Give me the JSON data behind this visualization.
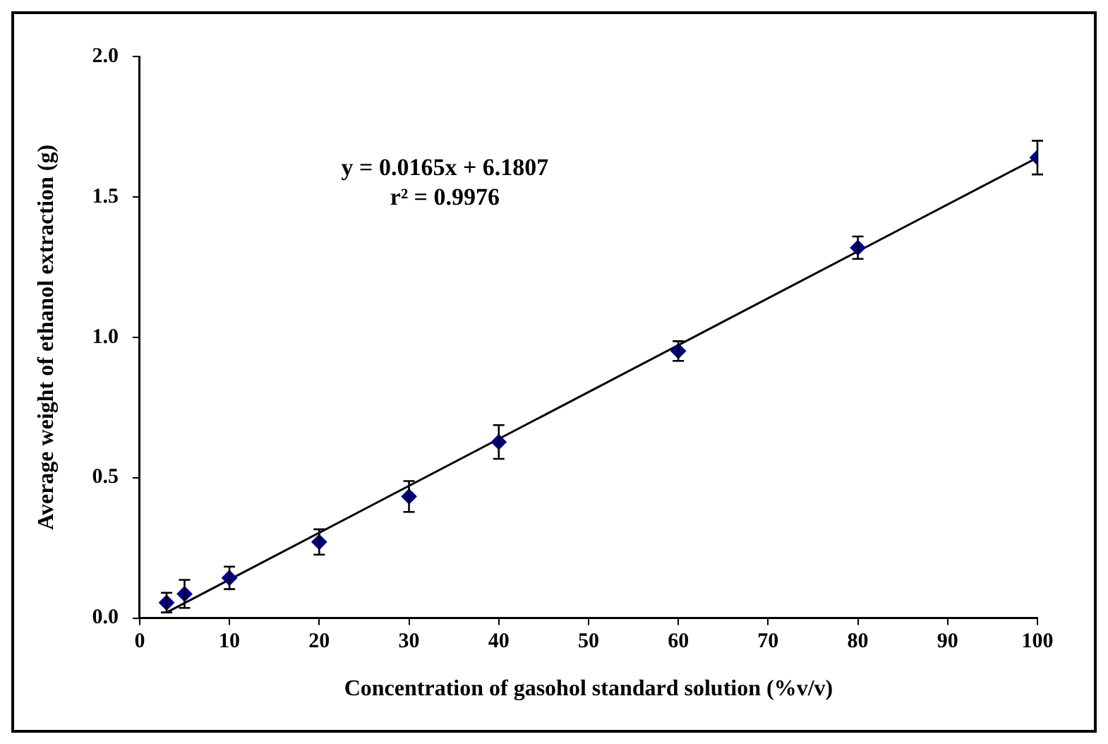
{
  "chart_data": {
    "type": "scatter",
    "xlabel": "Concentration of gasohol standard solution (%v/v)",
    "ylabel": "Average weight of ethanol extraction (g)",
    "annotations": [
      "y = 0.0165x + 6.1807",
      "r² = 0.9976"
    ],
    "x": [
      3,
      5,
      10,
      20,
      30,
      40,
      60,
      80,
      100
    ],
    "series": [
      {
        "type": "scatter",
        "color": "#00008b",
        "marker": "diamond",
        "values": [
          0.055,
          0.086,
          0.143,
          0.271,
          0.433,
          0.627,
          0.951,
          1.319,
          1.64
        ],
        "errors": [
          0.035,
          0.05,
          0.04,
          0.045,
          0.055,
          0.06,
          0.035,
          0.04,
          0.06
        ]
      },
      {
        "type": "line",
        "color": "#000000",
        "marker": "none",
        "x": [
          3,
          100
        ],
        "values": [
          0.02,
          1.64
        ]
      }
    ],
    "xlim": [
      0,
      100
    ],
    "xticks": [
      0,
      10,
      20,
      30,
      40,
      50,
      60,
      70,
      80,
      90,
      100
    ],
    "ylim": [
      0,
      2
    ],
    "yticks": [
      {
        "value": 0,
        "label": "0.0"
      },
      {
        "value": 0.5,
        "label": "0.5"
      },
      {
        "value": 1,
        "label": "1.0"
      },
      {
        "value": 1.5,
        "label": "1.5"
      },
      {
        "value": 2,
        "label": "2.0"
      }
    ],
    "grid": false,
    "legend": false
  }
}
